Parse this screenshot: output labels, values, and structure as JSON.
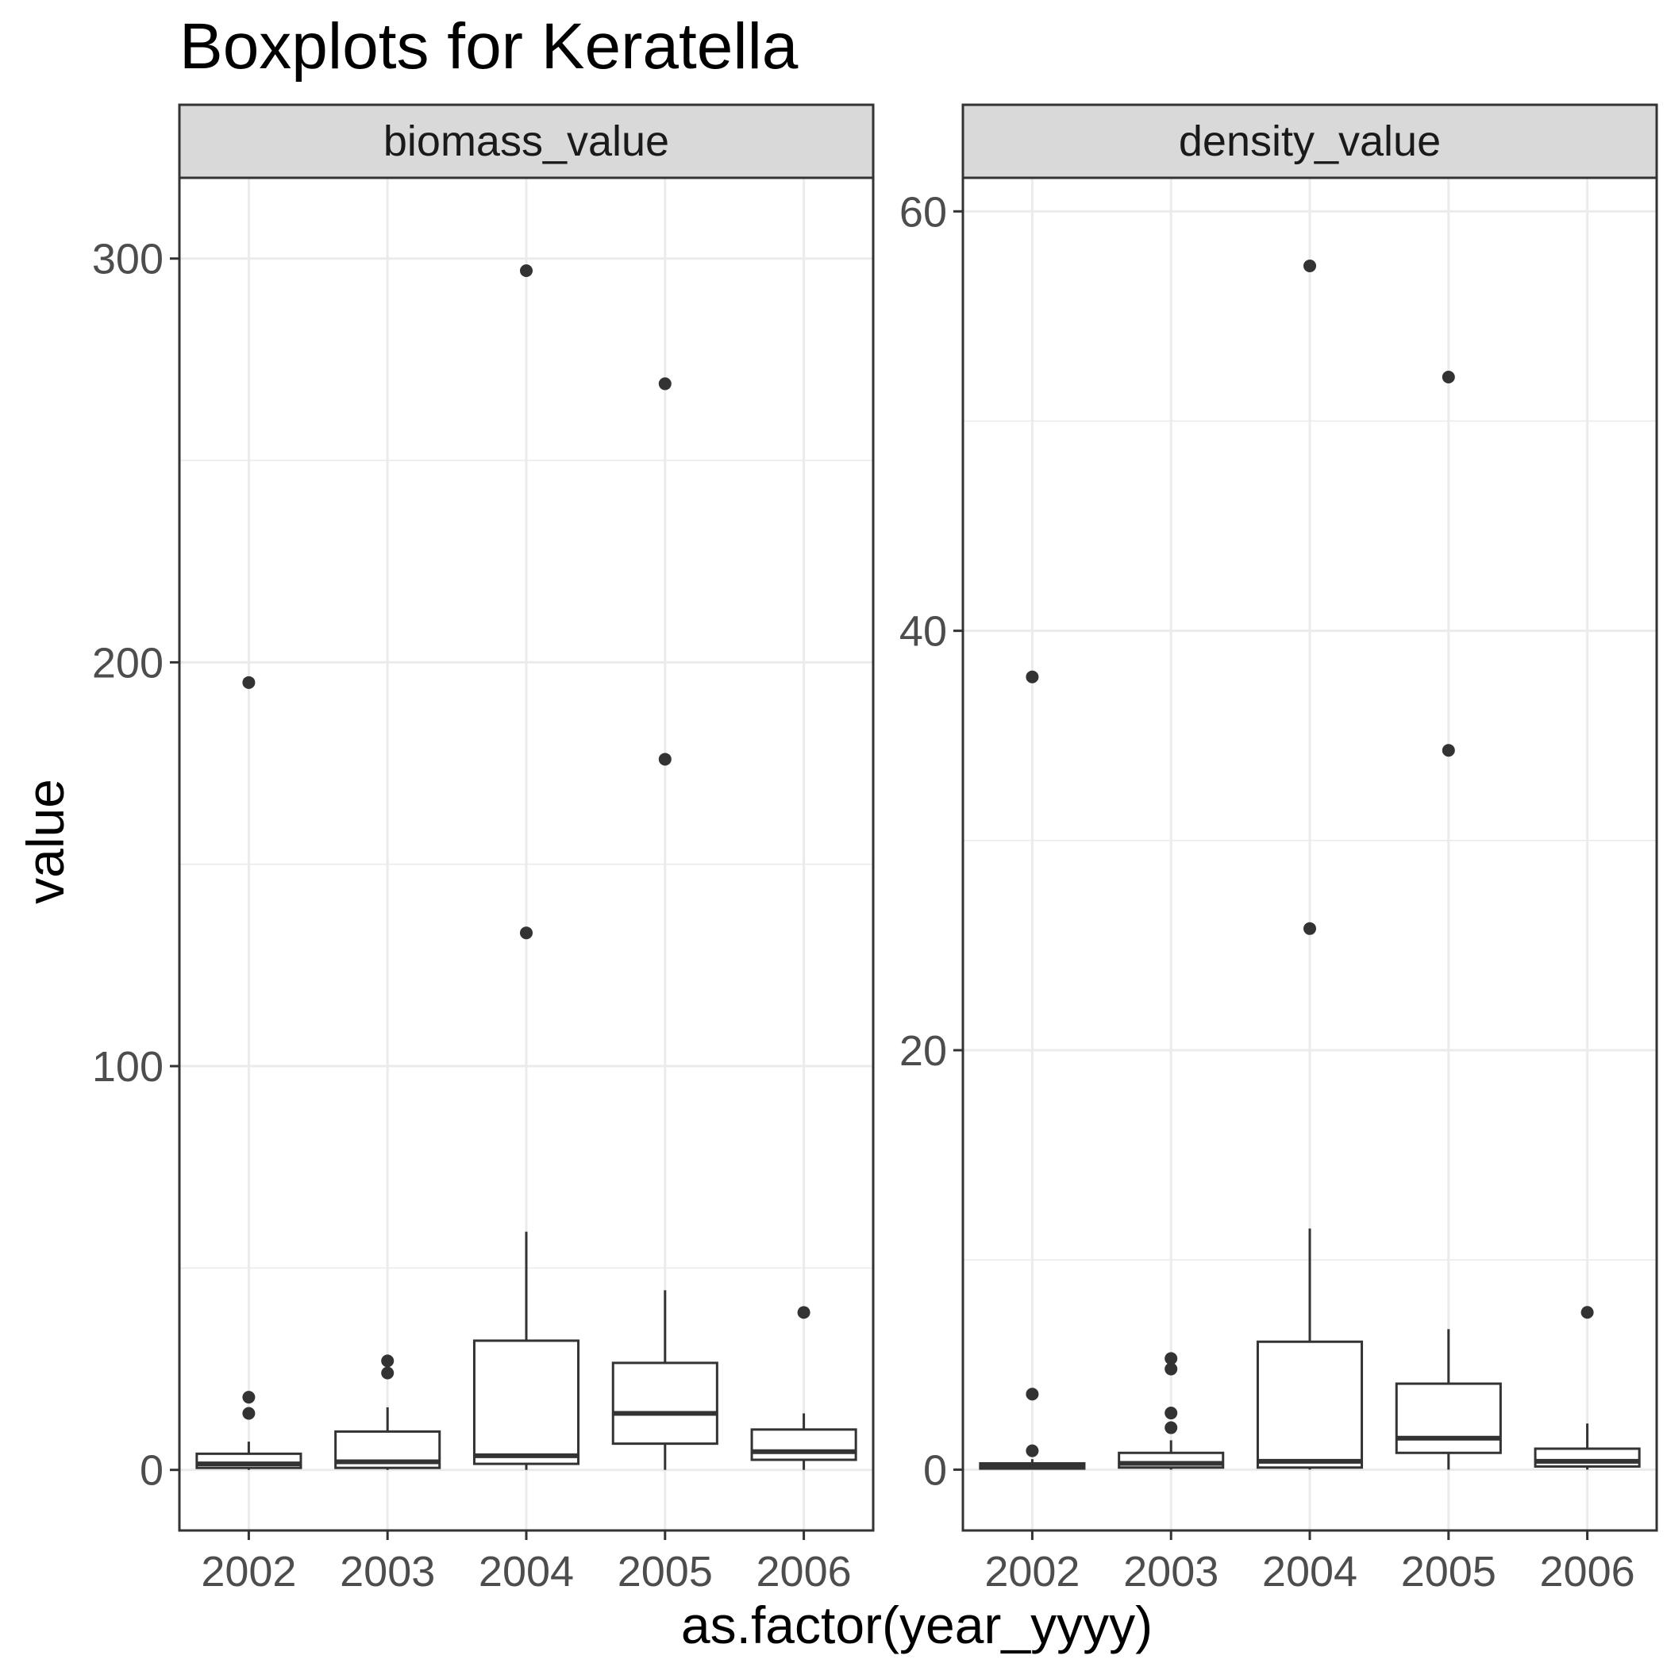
{
  "chart_data": {
    "type": "boxplot",
    "title": "Boxplots for Keratella",
    "xlabel": "as.factor(year_yyyy)",
    "ylabel": "value",
    "categories": [
      "2002",
      "2003",
      "2004",
      "2005",
      "2006"
    ],
    "grid": true,
    "legend": "none",
    "colors": {
      "box_stroke": "#333333",
      "outlier": "#333333",
      "strip_fill": "#d9d9d9",
      "grid_major": "#ebebeb",
      "panel_border": "#333333"
    },
    "panels": [
      {
        "name": "biomass_value",
        "ylim": [
          -15,
          320
        ],
        "yticks": [
          0,
          100,
          200,
          300
        ],
        "boxes": [
          {
            "category": "2002",
            "lower_whisker": 0,
            "q1": 0.5,
            "median": 1.5,
            "q3": 4,
            "upper_whisker": 7,
            "outliers": [
              14,
              18,
              195
            ]
          },
          {
            "category": "2003",
            "lower_whisker": 0,
            "q1": 0.5,
            "median": 2,
            "q3": 9.5,
            "upper_whisker": 15.5,
            "outliers": [
              24,
              27
            ]
          },
          {
            "category": "2004",
            "lower_whisker": 0,
            "q1": 1.5,
            "median": 3.5,
            "q3": 32,
            "upper_whisker": 59,
            "outliers": [
              133,
              297
            ]
          },
          {
            "category": "2005",
            "lower_whisker": 0,
            "q1": 6.5,
            "median": 14,
            "q3": 26.5,
            "upper_whisker": 44.5,
            "outliers": [
              176,
              269
            ]
          },
          {
            "category": "2006",
            "lower_whisker": 0,
            "q1": 2.5,
            "median": 4.5,
            "q3": 10,
            "upper_whisker": 14,
            "outliers": [
              39
            ]
          }
        ]
      },
      {
        "name": "density_value",
        "ylim": [
          -2.9,
          61.6
        ],
        "yticks": [
          0,
          20,
          40,
          60
        ],
        "boxes": [
          {
            "category": "2002",
            "lower_whisker": 0,
            "q1": 0.05,
            "median": 0.15,
            "q3": 0.3,
            "upper_whisker": 0.5,
            "outliers": [
              0.9,
              3.6,
              37.8
            ]
          },
          {
            "category": "2003",
            "lower_whisker": 0,
            "q1": 0.1,
            "median": 0.3,
            "q3": 0.8,
            "upper_whisker": 1.4,
            "outliers": [
              2,
              2.7,
              4.8,
              5.3
            ]
          },
          {
            "category": "2004",
            "lower_whisker": 0,
            "q1": 0.1,
            "median": 0.4,
            "q3": 6.1,
            "upper_whisker": 11.5,
            "outliers": [
              25.8,
              57.4
            ]
          },
          {
            "category": "2005",
            "lower_whisker": 0,
            "q1": 0.8,
            "median": 1.5,
            "q3": 4.1,
            "upper_whisker": 6.7,
            "outliers": [
              34.3,
              52.1
            ]
          },
          {
            "category": "2006",
            "lower_whisker": 0,
            "q1": 0.15,
            "median": 0.4,
            "q3": 1,
            "upper_whisker": 2.2,
            "outliers": [
              7.5
            ]
          }
        ]
      }
    ]
  }
}
